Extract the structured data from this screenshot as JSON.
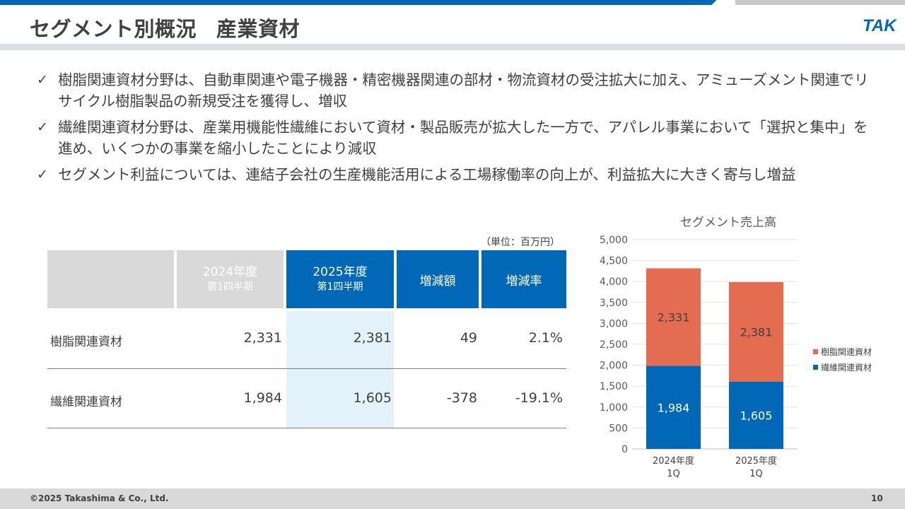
{
  "header": {
    "title_main": "セグメント別概況",
    "title_sub": "産業資材",
    "logo_text": "TAK"
  },
  "bullets": [
    {
      "text": "樹脂関連資材分野は、自動車関連や電子機器・精密機器関連の部材・物流資材の受注拡大に加え、アミューズメント関連でリサイクル樹脂製品の新規受注を獲得し、増収"
    },
    {
      "text": "繊維関連資材分野は、産業用機能性繊維において資材・製品販売が拡大した一方で、アパレル事業において「選択と集中」を進め、いくつかの事業を縮小したことにより減収"
    },
    {
      "text": "セグメント利益については、連結子会社の生産機能活用による工場稼働率の向上が、利益拡大に大きく寄与し増益"
    }
  ],
  "table": {
    "unit": "（単位：百万円）",
    "headers": {
      "col_2024_l1": "2024年度",
      "col_2024_l2": "第1四半期",
      "col_2025_l1": "2025年度",
      "col_2025_l2": "第1四半期",
      "col_diff": "増減額",
      "col_rate": "増減率"
    },
    "rows": [
      {
        "label": "樹脂関連資材",
        "v2024": "2,331",
        "v2025": "2,381",
        "diff": "49",
        "rate": "2.1%"
      },
      {
        "label": "繊維関連資材",
        "v2024": "1,984",
        "v2025": "1,605",
        "diff": "-378",
        "rate": "-19.1%"
      }
    ]
  },
  "chart_data": {
    "type": "bar",
    "stacked": true,
    "title": "セグメント売上高",
    "categories": [
      "2024年度\n1Q",
      "2025年度\n1Q"
    ],
    "series": [
      {
        "name": "繊維関連資材",
        "values": [
          1984,
          1605
        ],
        "color": "#0068b7",
        "labels": [
          "1,984",
          "1,605"
        ]
      },
      {
        "name": "樹脂関連資材",
        "values": [
          2331,
          2381
        ],
        "color": "#e46c50",
        "labels": [
          "2,331",
          "2,381"
        ]
      }
    ],
    "ylim": [
      0,
      5000
    ],
    "yticks": [
      0,
      500,
      1000,
      1500,
      2000,
      2500,
      3000,
      3500,
      4000,
      4500,
      5000
    ],
    "ytick_labels": [
      "0",
      "500",
      "1,000",
      "1,500",
      "2,000",
      "2,500",
      "3,000",
      "3,500",
      "4,000",
      "4,500",
      "5,000"
    ],
    "grid": true,
    "legend": "right"
  },
  "footer": {
    "copyright": "©2025 Takashima & Co., Ltd.",
    "page": "10"
  },
  "colors": {
    "brand_blue": "#0068b7",
    "resin_orange": "#e46c50",
    "header_gray": "#d9d9d9",
    "highlight_blue": "#e3f1fb"
  }
}
